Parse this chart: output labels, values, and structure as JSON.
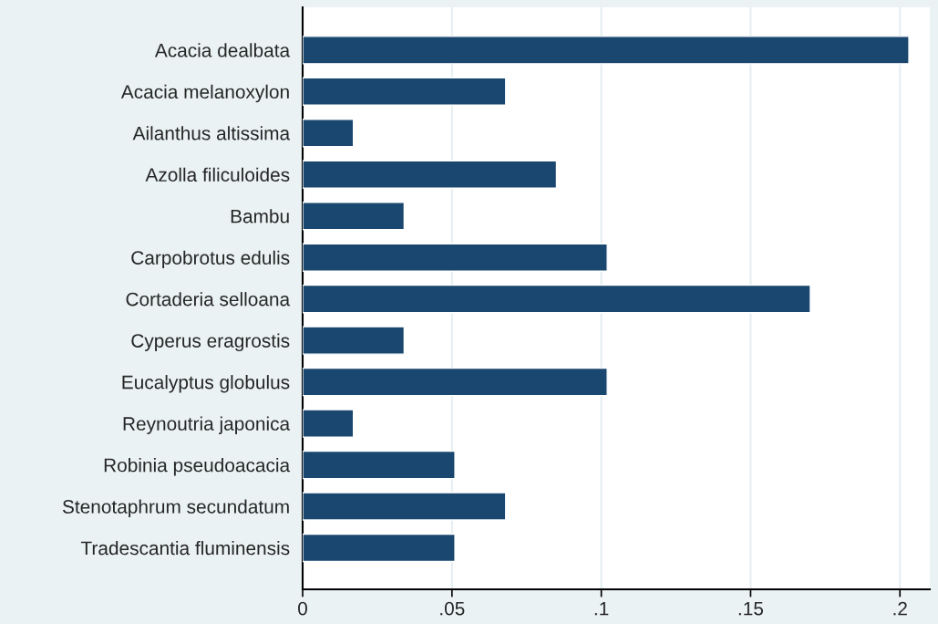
{
  "chart_data": {
    "type": "bar",
    "orientation": "horizontal",
    "categories": [
      "Acacia dealbata",
      "Acacia melanoxylon",
      "Ailanthus altissima",
      "Azolla filiculoides",
      "Bambu",
      "Carpobrotus edulis",
      "Cortaderia selloana",
      "Cyperus eragrostis",
      "Eucalyptus globulus",
      "Reynoutria japonica",
      "Robinia pseudoacacia",
      "Stenotaphrum secundatum",
      "Tradescantia fluminensis"
    ],
    "values": [
      0.203,
      0.068,
      0.017,
      0.085,
      0.034,
      0.102,
      0.17,
      0.034,
      0.102,
      0.017,
      0.051,
      0.068,
      0.051
    ],
    "color": "#1a476f",
    "xlim": [
      0,
      0.21
    ],
    "xticks": [
      {
        "value": 0,
        "label": "0"
      },
      {
        "value": 0.05,
        "label": ".05"
      },
      {
        "value": 0.1,
        "label": ".1"
      },
      {
        "value": 0.15,
        "label": ".15"
      },
      {
        "value": 0.2,
        "label": ".2"
      }
    ],
    "grid": "x",
    "legend": false
  }
}
